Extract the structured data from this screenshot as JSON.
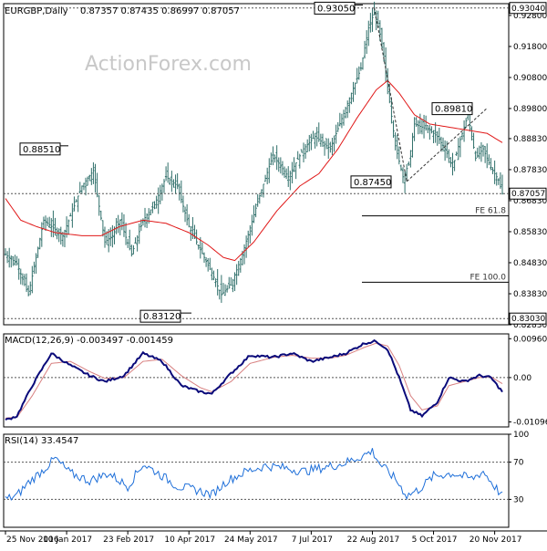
{
  "header": {
    "symbol": "EURGBP,Daily",
    "ohlc": "0.87357 0.87435 0.86997 0.87057"
  },
  "watermark": "ActionForex.com",
  "colors": {
    "bull": "#2f6f6a",
    "ma": "#e01818",
    "macd": "#0a0a7a",
    "signal": "#d88080",
    "rsi": "#1e6fd9",
    "grid": "#000000",
    "axis_text": "#000000"
  },
  "chart_data": [
    {
      "type": "candlestick",
      "title": "EURGBP,Daily",
      "y_ticks": [
        "0.92800",
        "0.91800",
        "0.90800",
        "0.89800",
        "0.88830",
        "0.87830",
        "0.86830",
        "0.85830",
        "0.84830",
        "0.83830",
        "0.82830"
      ],
      "ylim": [
        0.8283,
        0.9318
      ],
      "last_price": "0.87057",
      "levels": [
        {
          "label": "0.93040",
          "value": 0.9304
        },
        {
          "label": "0.83030",
          "value": 0.8303
        },
        {
          "label": "0.87057",
          "value": 0.87057
        }
      ],
      "price_annotations": [
        {
          "label": "0.93050",
          "value": 0.9305,
          "date": "7 Aug 2017"
        },
        {
          "label": "0.88510",
          "value": 0.8851,
          "date": "Jan 2017"
        },
        {
          "label": "0.87450",
          "value": 0.8745,
          "date": "Sep 2017"
        },
        {
          "label": "0.89810",
          "value": 0.8981,
          "date": "Nov 2017"
        },
        {
          "label": "0.83120",
          "value": 0.8312,
          "date": "Apr 2017"
        }
      ],
      "fibonacci": [
        {
          "label": "FE 61.8",
          "value": 0.8634
        },
        {
          "label": "FE 100.0",
          "value": 0.842
        }
      ],
      "close_anchors": [
        [
          0,
          0.851
        ],
        [
          6,
          0.848
        ],
        [
          12,
          0.838
        ],
        [
          20,
          0.862
        ],
        [
          30,
          0.857
        ],
        [
          40,
          0.873
        ],
        [
          46,
          0.878
        ],
        [
          52,
          0.855
        ],
        [
          56,
          0.857
        ],
        [
          60,
          0.862
        ],
        [
          66,
          0.851
        ],
        [
          72,
          0.862
        ],
        [
          78,
          0.867
        ],
        [
          84,
          0.876
        ],
        [
          90,
          0.873
        ],
        [
          96,
          0.86
        ],
        [
          100,
          0.855
        ],
        [
          108,
          0.845
        ],
        [
          113,
          0.838
        ],
        [
          118,
          0.841
        ],
        [
          124,
          0.851
        ],
        [
          132,
          0.868
        ],
        [
          140,
          0.883
        ],
        [
          148,
          0.876
        ],
        [
          156,
          0.885
        ],
        [
          162,
          0.889
        ],
        [
          170,
          0.885
        ],
        [
          178,
          0.898
        ],
        [
          186,
          0.911
        ],
        [
          190,
          0.924
        ],
        [
          193,
          0.929
        ],
        [
          196,
          0.922
        ],
        [
          200,
          0.905
        ],
        [
          204,
          0.886
        ],
        [
          208,
          0.876
        ],
        [
          211,
          0.88
        ],
        [
          214,
          0.893
        ],
        [
          218,
          0.892
        ],
        [
          222,
          0.891
        ],
        [
          226,
          0.889
        ],
        [
          230,
          0.885
        ],
        [
          234,
          0.879
        ],
        [
          238,
          0.888
        ],
        [
          242,
          0.896
        ],
        [
          246,
          0.882
        ],
        [
          250,
          0.885
        ],
        [
          254,
          0.879
        ],
        [
          258,
          0.875
        ],
        [
          260,
          0.8706
        ]
      ],
      "ma_anchors": [
        [
          0,
          0.869
        ],
        [
          8,
          0.862
        ],
        [
          16,
          0.86
        ],
        [
          26,
          0.858
        ],
        [
          40,
          0.857
        ],
        [
          50,
          0.857
        ],
        [
          60,
          0.86
        ],
        [
          72,
          0.862
        ],
        [
          84,
          0.861
        ],
        [
          96,
          0.858
        ],
        [
          106,
          0.854
        ],
        [
          114,
          0.85
        ],
        [
          120,
          0.849
        ],
        [
          130,
          0.855
        ],
        [
          142,
          0.865
        ],
        [
          154,
          0.873
        ],
        [
          164,
          0.877
        ],
        [
          174,
          0.885
        ],
        [
          184,
          0.895
        ],
        [
          194,
          0.904
        ],
        [
          200,
          0.907
        ],
        [
          206,
          0.903
        ],
        [
          214,
          0.896
        ],
        [
          222,
          0.893
        ],
        [
          232,
          0.892
        ],
        [
          242,
          0.891
        ],
        [
          252,
          0.89
        ],
        [
          260,
          0.887
        ]
      ]
    },
    {
      "type": "line",
      "title": "MACD(12,26,9) -0.003497 -0.001459",
      "y_ticks": [
        "0.009608",
        "0.00",
        "-0.010961"
      ],
      "ylim": [
        -0.0122,
        0.0108
      ],
      "series": [
        {
          "name": "MACD",
          "anchors": [
            [
              0,
              -0.0105
            ],
            [
              6,
              -0.0095
            ],
            [
              14,
              -0.002
            ],
            [
              24,
              0.006
            ],
            [
              34,
              0.003
            ],
            [
              44,
              0.0005
            ],
            [
              52,
              -0.001
            ],
            [
              62,
              0.0005
            ],
            [
              72,
              0.006
            ],
            [
              82,
              0.004
            ],
            [
              92,
              -0.002
            ],
            [
              102,
              -0.0035
            ],
            [
              108,
              -0.004
            ],
            [
              118,
              0.001
            ],
            [
              128,
              0.0055
            ],
            [
              140,
              0.005
            ],
            [
              150,
              0.006
            ],
            [
              160,
              0.004
            ],
            [
              170,
              0.005
            ],
            [
              178,
              0.006
            ],
            [
              188,
              0.0085
            ],
            [
              194,
              0.009
            ],
            [
              200,
              0.007
            ],
            [
              206,
              0.0
            ],
            [
              212,
              -0.008
            ],
            [
              218,
              -0.0095
            ],
            [
              226,
              -0.006
            ],
            [
              232,
              0.0
            ],
            [
              240,
              -0.001
            ],
            [
              248,
              0.0005
            ],
            [
              254,
              0.0
            ],
            [
              260,
              -0.0035
            ]
          ]
        },
        {
          "name": "Signal",
          "anchors": [
            [
              0,
              -0.01
            ],
            [
              6,
              -0.0098
            ],
            [
              14,
              -0.0045
            ],
            [
              24,
              0.0035
            ],
            [
              34,
              0.004
            ],
            [
              44,
              0.0015
            ],
            [
              52,
              -0.0002
            ],
            [
              62,
              0.0
            ],
            [
              72,
              0.004
            ],
            [
              82,
              0.0045
            ],
            [
              92,
              0.0005
            ],
            [
              102,
              -0.0025
            ],
            [
              108,
              -0.0035
            ],
            [
              118,
              -0.001
            ],
            [
              128,
              0.0035
            ],
            [
              140,
              0.005
            ],
            [
              150,
              0.0055
            ],
            [
              160,
              0.0048
            ],
            [
              170,
              0.0048
            ],
            [
              178,
              0.0055
            ],
            [
              188,
              0.0075
            ],
            [
              194,
              0.0085
            ],
            [
              200,
              0.0078
            ],
            [
              206,
              0.003
            ],
            [
              212,
              -0.0045
            ],
            [
              218,
              -0.008
            ],
            [
              226,
              -0.007
            ],
            [
              232,
              -0.002
            ],
            [
              240,
              -0.001
            ],
            [
              248,
              0.0
            ],
            [
              254,
              0.0002
            ],
            [
              260,
              -0.0015
            ]
          ]
        }
      ]
    },
    {
      "type": "line",
      "title": "RSI(14) 33.4547",
      "y_ticks": [
        "100",
        "70",
        "30",
        "0"
      ],
      "ylim": [
        0,
        100
      ],
      "series": [
        {
          "name": "RSI(14)",
          "anchors": [
            [
              0,
              30
            ],
            [
              6,
              34
            ],
            [
              12,
              48
            ],
            [
              20,
              62
            ],
            [
              26,
              74
            ],
            [
              34,
              58
            ],
            [
              44,
              50
            ],
            [
              54,
              58
            ],
            [
              64,
              44
            ],
            [
              72,
              68
            ],
            [
              80,
              58
            ],
            [
              90,
              44
            ],
            [
              100,
              40
            ],
            [
              108,
              35
            ],
            [
              116,
              50
            ],
            [
              126,
              60
            ],
            [
              136,
              66
            ],
            [
              146,
              64
            ],
            [
              156,
              60
            ],
            [
              166,
              64
            ],
            [
              176,
              68
            ],
            [
              186,
              76
            ],
            [
              192,
              82
            ],
            [
              196,
              68
            ],
            [
              204,
              52
            ],
            [
              210,
              34
            ],
            [
              216,
              40
            ],
            [
              224,
              55
            ],
            [
              234,
              58
            ],
            [
              244,
              52
            ],
            [
              250,
              60
            ],
            [
              256,
              44
            ],
            [
              260,
              33.45
            ]
          ]
        }
      ]
    }
  ],
  "x_ticks": [
    {
      "label": "25 Nov 2016",
      "index": 0
    },
    {
      "label": "10 Jan 2017",
      "index": 32
    },
    {
      "label": "23 Feb 2017",
      "index": 64
    },
    {
      "label": "10 Apr 2017",
      "index": 96
    },
    {
      "label": "24 May 2017",
      "index": 128
    },
    {
      "label": "7 Jul 2017",
      "index": 160
    },
    {
      "label": "22 Aug 2017",
      "index": 192
    },
    {
      "label": "5 Oct 2017",
      "index": 224
    },
    {
      "label": "20 Nov 2017",
      "index": 256
    }
  ],
  "bar_count": 261
}
